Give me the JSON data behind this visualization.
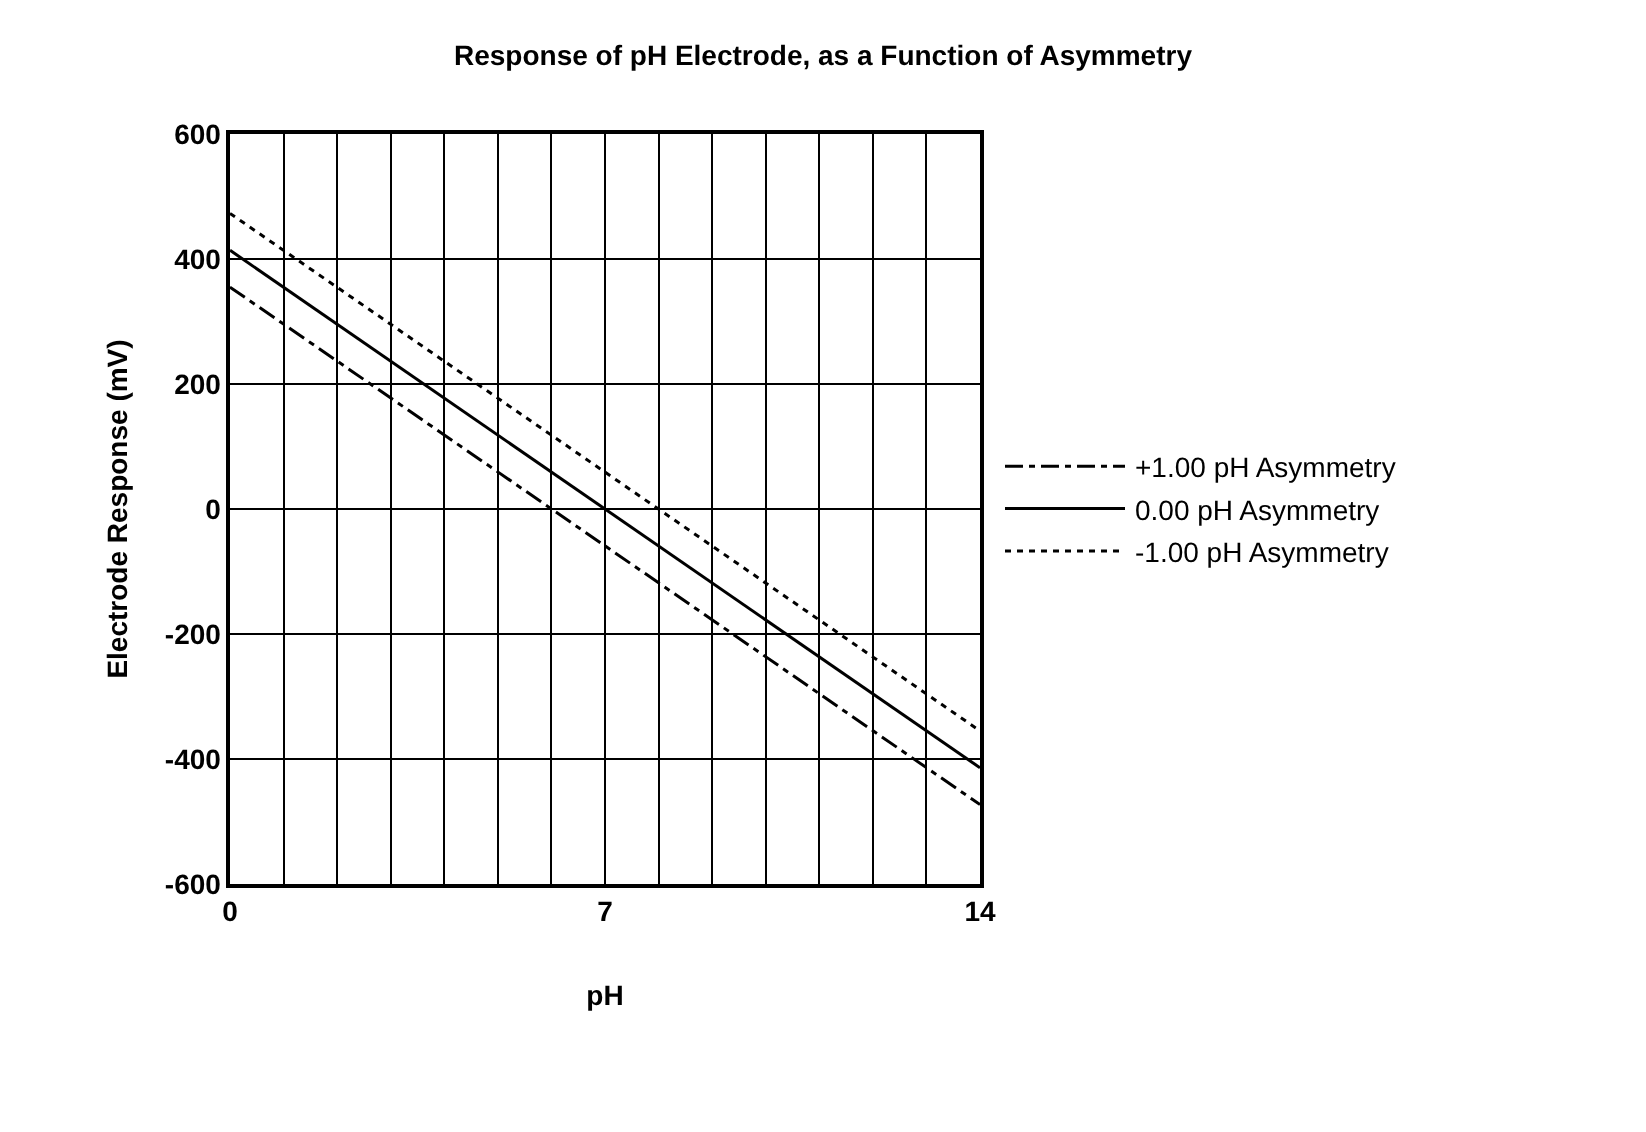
{
  "chart_data": {
    "type": "line",
    "title": "Response of pH Electrode, as a Function of Asymmetry",
    "xlabel": "pH",
    "ylabel": "Electrode Response (mV)",
    "x": [
      0,
      14
    ],
    "series": [
      {
        "name": "+1.00 pH Asymmetry",
        "color": "#000000",
        "line_style": "dashdot",
        "values": [
          355,
          -473
        ]
      },
      {
        "name": "0.00 pH Asymmetry",
        "color": "#000000",
        "line_style": "solid",
        "values": [
          414,
          -414
        ]
      },
      {
        "name": "-1.00 pH Asymmetry",
        "color": "#000000",
        "line_style": "dotted",
        "values": [
          473,
          -355
        ]
      }
    ],
    "xlim": [
      0,
      14
    ],
    "xticks": [
      0,
      {
        "value": 1,
        "label": null
      },
      {
        "value": 2,
        "label": null
      },
      {
        "value": 3,
        "label": null
      },
      {
        "value": 4,
        "label": null
      },
      {
        "value": 5,
        "label": null
      },
      {
        "value": 6,
        "label": null
      },
      7,
      {
        "value": 8,
        "label": null
      },
      {
        "value": 9,
        "label": null
      },
      {
        "value": 10,
        "label": null
      },
      {
        "value": 11,
        "label": null
      },
      {
        "value": 12,
        "label": null
      },
      {
        "value": 13,
        "label": null
      },
      14
    ],
    "ylim": [
      -600,
      600
    ],
    "yticks": [
      -600,
      -400,
      -200,
      0,
      200,
      400,
      600
    ],
    "grid": true,
    "legend": "right",
    "marker": "none"
  }
}
